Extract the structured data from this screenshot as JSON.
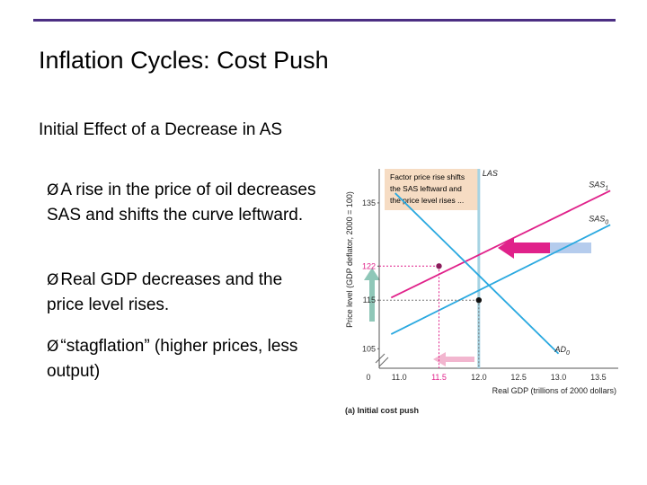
{
  "slide": {
    "title": "Inflation Cycles:  Cost Push",
    "heading": "Initial Effect of a Decrease in AS",
    "bullets": [
      "A rise in the price of oil decreases SAS and shifts the curve leftward.",
      "Real GDP decreases and the price level rises.",
      "“stagflation” (higher prices, less output)"
    ],
    "bullet_marker": "Ø",
    "accent_color": "#4b2e83"
  },
  "chart_data": {
    "type": "line",
    "panel_label": "(a) Initial cost push",
    "xlabel": "Real GDP (trillions of 2000 dollars)",
    "ylabel": "Price level (GDP deflator, 2000 = 100)",
    "x_ticks": [
      "0",
      "11.0",
      "11.5",
      "12.0",
      "12.5",
      "13.0",
      "13.5"
    ],
    "y_ticks": [
      "105",
      "115",
      "122",
      "135"
    ],
    "xlim": [
      10.75,
      13.75
    ],
    "ylim": [
      101,
      142
    ],
    "callout": [
      "Factor price rise shifts",
      "the SAS leftward and",
      "the price level rises ..."
    ],
    "series": [
      {
        "name": "LAS",
        "color": "#a6d3e3",
        "points": [
          [
            12.0,
            101
          ],
          [
            12.0,
            142
          ]
        ]
      },
      {
        "name": "SAS1",
        "color": "#e0218a",
        "points": [
          [
            10.9,
            115.5
          ],
          [
            13.65,
            137.5
          ]
        ]
      },
      {
        "name": "SAS0",
        "color": "#2aa9e0",
        "points": [
          [
            10.9,
            108
          ],
          [
            13.65,
            130.5
          ]
        ]
      },
      {
        "name": "AD0",
        "color": "#2aa9e0",
        "points": [
          [
            10.95,
            137
          ],
          [
            13.0,
            104
          ]
        ]
      }
    ],
    "equilibria": [
      {
        "x": 12.0,
        "y": 115
      },
      {
        "x": 11.5,
        "y": 122
      }
    ],
    "highlight_tick_color": "#e0218a"
  }
}
